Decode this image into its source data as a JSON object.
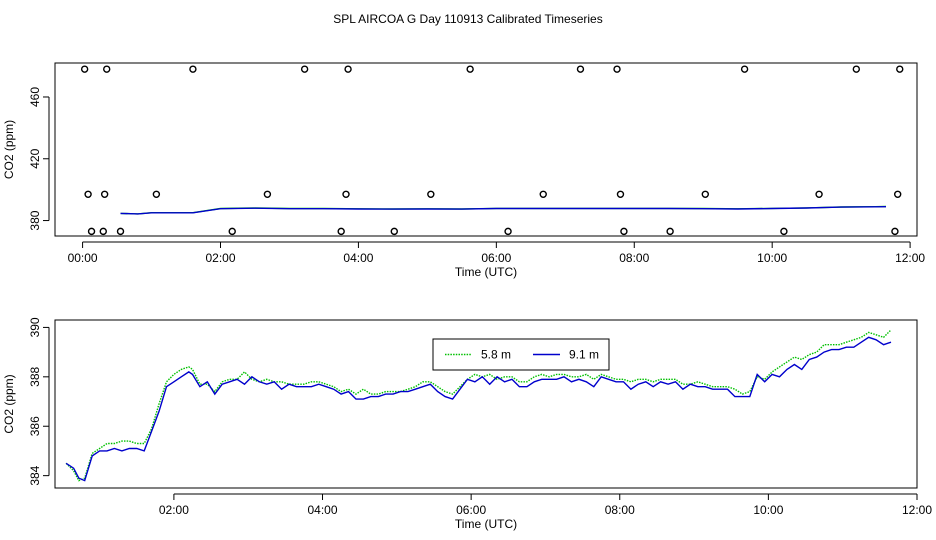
{
  "figure_title": "SPL AIRCOA G  Day 110913  Calibrated Timeseries",
  "chart_data": [
    {
      "type": "scatter",
      "title": "",
      "xlabel": "Time (UTC)",
      "ylabel": "CO2 (ppm)",
      "xlim": [
        -0.4,
        12.1
      ],
      "ylim": [
        370,
        482
      ],
      "xticks": [
        0,
        2,
        4,
        6,
        8,
        10,
        12
      ],
      "xticklabels": [
        "00:00",
        "02:00",
        "04:00",
        "06:00",
        "08:00",
        "10:00",
        "12:00"
      ],
      "yticks": [
        380,
        420,
        460
      ],
      "yticklabels": [
        "380",
        "420",
        "460"
      ],
      "points": {
        "x": [
          0.03,
          0.35,
          1.6,
          3.22,
          3.85,
          5.62,
          7.22,
          7.75,
          9.6,
          11.22,
          11.85,
          0.08,
          0.32,
          1.07,
          2.68,
          3.82,
          5.05,
          6.68,
          7.8,
          9.03,
          10.68,
          11.82,
          0.13,
          0.3,
          0.55,
          2.17,
          3.75,
          4.52,
          6.17,
          7.85,
          8.52,
          10.17,
          11.78
        ],
        "y": [
          478,
          478,
          478,
          478,
          478,
          478,
          478,
          478,
          478,
          478,
          478,
          397,
          397,
          397,
          397,
          397,
          397,
          397,
          397,
          397,
          397,
          397,
          373,
          373,
          373,
          373,
          373,
          373,
          373,
          373,
          373,
          373,
          373
        ]
      },
      "series": [
        {
          "name": "5.8 m",
          "color": "#00c000",
          "x": [
            0.55,
            0.8,
            1.0,
            1.3,
            1.6,
            2.0,
            2.5,
            3.0,
            3.5,
            4.0,
            4.5,
            5.0,
            5.5,
            6.0,
            6.5,
            7.0,
            7.5,
            8.0,
            8.5,
            9.0,
            9.5,
            10.0,
            10.5,
            11.0,
            11.5,
            11.65
          ],
          "y": [
            384.6,
            384.3,
            385.1,
            385.1,
            385.1,
            387.8,
            388.1,
            387.8,
            387.8,
            387.6,
            387.5,
            387.6,
            387.5,
            387.9,
            387.9,
            387.9,
            387.9,
            387.9,
            387.9,
            387.8,
            387.6,
            387.9,
            388.2,
            388.8,
            389.0,
            389.1
          ]
        },
        {
          "name": "9.1 m",
          "color": "#0000cc",
          "x": [
            0.55,
            0.8,
            1.0,
            1.3,
            1.6,
            2.0,
            2.5,
            3.0,
            3.5,
            4.0,
            4.5,
            5.0,
            5.5,
            6.0,
            6.5,
            7.0,
            7.5,
            8.0,
            8.5,
            9.0,
            9.5,
            10.0,
            10.5,
            11.0,
            11.5,
            11.65
          ],
          "y": [
            384.6,
            384.3,
            385.0,
            385.0,
            385.0,
            387.7,
            388.0,
            387.7,
            387.7,
            387.5,
            387.4,
            387.5,
            387.4,
            387.8,
            387.8,
            387.8,
            387.8,
            387.8,
            387.8,
            387.7,
            387.5,
            387.8,
            388.1,
            388.7,
            388.9,
            389.0
          ]
        }
      ]
    },
    {
      "type": "line",
      "title": "",
      "xlabel": "Time (UTC)",
      "ylabel": "CO2 (ppm)",
      "xlim": [
        0.4,
        12.0
      ],
      "ylim": [
        383.5,
        390.3
      ],
      "xticks": [
        2,
        4,
        6,
        8,
        10,
        12
      ],
      "xticklabels": [
        "02:00",
        "04:00",
        "06:00",
        "08:00",
        "10:00",
        "12:00"
      ],
      "yticks": [
        384,
        386,
        388,
        390
      ],
      "yticklabels": [
        "384",
        "386",
        "388",
        "390"
      ],
      "legend": [
        "5.8 m",
        "9.1 m"
      ],
      "legend_position": "top-center",
      "series": [
        {
          "name": "5.8 m",
          "color": "#00c000",
          "dashed": true,
          "x": [
            0.55,
            0.65,
            0.72,
            0.8,
            0.9,
            1.0,
            1.1,
            1.2,
            1.3,
            1.4,
            1.5,
            1.6,
            1.7,
            1.8,
            1.9,
            2.0,
            2.1,
            2.2,
            2.25,
            2.35,
            2.45,
            2.55,
            2.65,
            2.75,
            2.85,
            2.95,
            3.05,
            3.15,
            3.25,
            3.35,
            3.45,
            3.55,
            3.65,
            3.75,
            3.85,
            3.95,
            4.05,
            4.15,
            4.25,
            4.35,
            4.45,
            4.55,
            4.65,
            4.75,
            4.85,
            4.95,
            5.05,
            5.15,
            5.25,
            5.35,
            5.45,
            5.55,
            5.65,
            5.75,
            5.85,
            5.95,
            6.05,
            6.15,
            6.25,
            6.35,
            6.45,
            6.55,
            6.65,
            6.75,
            6.85,
            6.95,
            7.05,
            7.15,
            7.25,
            7.35,
            7.45,
            7.55,
            7.65,
            7.75,
            7.85,
            7.95,
            8.05,
            8.15,
            8.25,
            8.35,
            8.45,
            8.55,
            8.65,
            8.75,
            8.85,
            8.95,
            9.05,
            9.15,
            9.25,
            9.35,
            9.45,
            9.55,
            9.65,
            9.75,
            9.85,
            9.95,
            10.05,
            10.15,
            10.25,
            10.35,
            10.45,
            10.55,
            10.65,
            10.75,
            10.85,
            10.95,
            11.05,
            11.15,
            11.25,
            11.35,
            11.45,
            11.55,
            11.65
          ],
          "y": [
            384.5,
            384.2,
            383.8,
            383.9,
            384.9,
            385.1,
            385.3,
            385.3,
            385.4,
            385.4,
            385.3,
            385.3,
            385.9,
            386.9,
            387.8,
            388.1,
            388.3,
            388.4,
            388.3,
            387.7,
            387.7,
            387.4,
            387.8,
            387.9,
            387.9,
            388.2,
            387.9,
            387.8,
            387.9,
            387.8,
            387.8,
            387.7,
            387.7,
            387.7,
            387.8,
            387.8,
            387.7,
            387.6,
            387.4,
            387.5,
            387.3,
            387.5,
            387.3,
            387.3,
            387.4,
            387.4,
            387.4,
            387.5,
            387.6,
            387.8,
            387.8,
            387.6,
            387.4,
            387.3,
            387.6,
            387.9,
            388.1,
            388.0,
            388.1,
            387.9,
            388.0,
            388.0,
            387.8,
            387.8,
            388.0,
            388.1,
            388.0,
            388.1,
            388.1,
            388.0,
            388.0,
            388.1,
            387.9,
            388.1,
            388.0,
            387.9,
            387.9,
            387.8,
            387.9,
            387.9,
            387.8,
            387.9,
            387.9,
            387.9,
            387.7,
            387.7,
            387.8,
            387.7,
            387.6,
            387.6,
            387.6,
            387.5,
            387.3,
            387.4,
            388.0,
            387.9,
            388.2,
            388.4,
            388.6,
            388.8,
            388.7,
            388.9,
            389.0,
            389.3,
            389.3,
            389.3,
            389.4,
            389.5,
            389.6,
            389.8,
            389.7,
            389.6,
            389.9
          ]
        },
        {
          "name": "9.1 m",
          "color": "#0000cc",
          "dashed": false,
          "x": [
            0.55,
            0.65,
            0.72,
            0.8,
            0.9,
            1.0,
            1.1,
            1.2,
            1.3,
            1.4,
            1.5,
            1.6,
            1.7,
            1.8,
            1.9,
            2.0,
            2.1,
            2.2,
            2.25,
            2.35,
            2.45,
            2.55,
            2.65,
            2.75,
            2.85,
            2.95,
            3.05,
            3.15,
            3.25,
            3.35,
            3.45,
            3.55,
            3.65,
            3.75,
            3.85,
            3.95,
            4.05,
            4.15,
            4.25,
            4.35,
            4.45,
            4.55,
            4.65,
            4.75,
            4.85,
            4.95,
            5.05,
            5.15,
            5.25,
            5.35,
            5.45,
            5.55,
            5.65,
            5.75,
            5.85,
            5.95,
            6.05,
            6.15,
            6.25,
            6.35,
            6.45,
            6.55,
            6.65,
            6.75,
            6.85,
            6.95,
            7.05,
            7.15,
            7.25,
            7.35,
            7.45,
            7.55,
            7.65,
            7.75,
            7.85,
            7.95,
            8.05,
            8.15,
            8.25,
            8.35,
            8.45,
            8.55,
            8.65,
            8.75,
            8.85,
            8.95,
            9.05,
            9.15,
            9.25,
            9.35,
            9.45,
            9.55,
            9.65,
            9.75,
            9.85,
            9.95,
            10.05,
            10.15,
            10.25,
            10.35,
            10.45,
            10.55,
            10.65,
            10.75,
            10.85,
            10.95,
            11.05,
            11.15,
            11.25,
            11.35,
            11.45,
            11.55,
            11.65
          ],
          "y": [
            384.5,
            384.3,
            383.9,
            383.8,
            384.8,
            385.0,
            385.0,
            385.1,
            385.0,
            385.1,
            385.1,
            385.0,
            385.8,
            386.6,
            387.6,
            387.8,
            388.0,
            388.2,
            388.1,
            387.6,
            387.8,
            387.3,
            387.7,
            387.8,
            387.9,
            387.7,
            388.0,
            387.8,
            387.7,
            387.8,
            387.5,
            387.7,
            387.6,
            387.6,
            387.6,
            387.7,
            387.6,
            387.5,
            387.3,
            387.4,
            387.1,
            387.1,
            387.2,
            387.2,
            387.3,
            387.3,
            387.4,
            387.4,
            387.5,
            387.6,
            387.7,
            387.4,
            387.2,
            387.1,
            387.5,
            387.9,
            387.8,
            388.0,
            387.7,
            388.0,
            387.8,
            387.9,
            387.6,
            387.6,
            387.8,
            387.9,
            387.9,
            387.9,
            388.0,
            387.8,
            387.9,
            387.8,
            387.6,
            388.0,
            387.9,
            387.8,
            387.8,
            387.5,
            387.7,
            387.8,
            387.6,
            387.8,
            387.7,
            387.8,
            387.5,
            387.7,
            387.6,
            387.6,
            387.5,
            387.5,
            387.5,
            387.2,
            387.2,
            387.2,
            388.1,
            387.8,
            388.1,
            388.0,
            388.3,
            388.5,
            388.3,
            388.7,
            388.8,
            389.0,
            389.1,
            389.1,
            389.2,
            389.2,
            389.4,
            389.6,
            389.5,
            389.3,
            389.4
          ]
        }
      ]
    }
  ]
}
